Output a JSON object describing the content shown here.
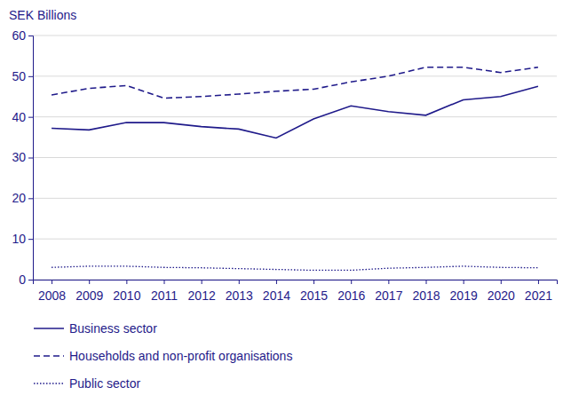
{
  "chart_data": {
    "type": "line",
    "y_label": "SEK Billions",
    "categories": [
      "2008",
      "2009",
      "2010",
      "2011",
      "2012",
      "2013",
      "2014",
      "2015",
      "2016",
      "2017",
      "2018",
      "2019",
      "2020",
      "2021"
    ],
    "series": [
      {
        "name": "Business sector",
        "color": "#1f1a8a",
        "line_style": "solid",
        "values": [
          37.2,
          36.8,
          38.6,
          38.6,
          37.6,
          37.0,
          34.8,
          39.5,
          42.7,
          41.3,
          40.4,
          44.2,
          45.0,
          47.5
        ]
      },
      {
        "name": "Households and non-profit organisations",
        "color": "#1f1a8a",
        "line_style": "dashed",
        "values": [
          45.4,
          47.0,
          47.7,
          44.6,
          45.0,
          45.6,
          46.3,
          46.8,
          48.6,
          50.0,
          52.2,
          52.2,
          50.9,
          52.2
        ]
      },
      {
        "name": "Public sector",
        "color": "#1f1a8a",
        "line_style": "dotted",
        "values": [
          3.0,
          3.3,
          3.3,
          3.0,
          2.9,
          2.7,
          2.5,
          2.3,
          2.3,
          2.8,
          3.0,
          3.3,
          3.0,
          2.9
        ]
      }
    ],
    "ylim": [
      0,
      60
    ],
    "yticks": [
      0,
      10,
      20,
      30,
      40,
      50,
      60
    ],
    "grid": true,
    "legend": "bottom-left"
  }
}
